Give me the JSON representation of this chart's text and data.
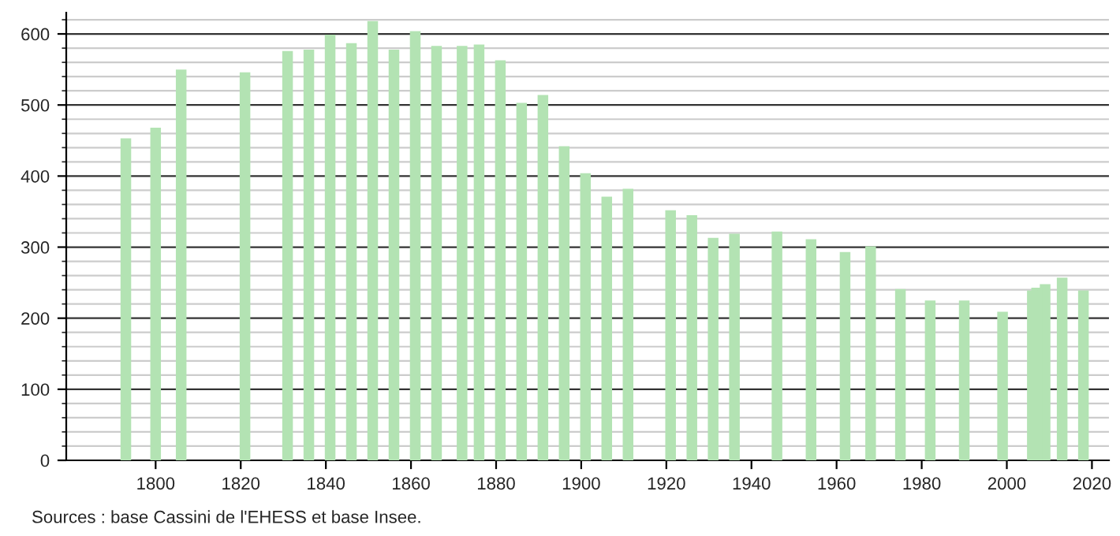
{
  "chart_data": {
    "type": "bar",
    "color": "#b3e3b3",
    "x": [
      1793,
      1800,
      1806,
      1821,
      1831,
      1836,
      1841,
      1846,
      1851,
      1856,
      1861,
      1866,
      1872,
      1876,
      1881,
      1886,
      1891,
      1896,
      1901,
      1906,
      1911,
      1921,
      1926,
      1931,
      1936,
      1946,
      1954,
      1962,
      1968,
      1975,
      1982,
      1990,
      1999,
      2006,
      2007,
      2009,
      2013,
      2018
    ],
    "values": [
      453,
      468,
      550,
      546,
      576,
      578,
      599,
      587,
      618,
      578,
      604,
      583,
      583,
      585,
      563,
      503,
      514,
      442,
      404,
      371,
      382,
      352,
      345,
      313,
      319,
      322,
      311,
      293,
      301,
      241,
      225,
      225,
      209,
      239,
      243,
      248,
      257,
      239
    ],
    "xlim": [
      1779,
      2024
    ],
    "xticks": [
      1800,
      1820,
      1840,
      1860,
      1880,
      1900,
      1920,
      1940,
      1960,
      1980,
      2000,
      2020
    ],
    "ylim": [
      0,
      630
    ],
    "yticks": [
      0,
      100,
      200,
      300,
      400,
      500,
      600
    ],
    "grid": "y",
    "annotations": [
      "Sources : base Cassini de l'EHESS et base Insee."
    ]
  }
}
